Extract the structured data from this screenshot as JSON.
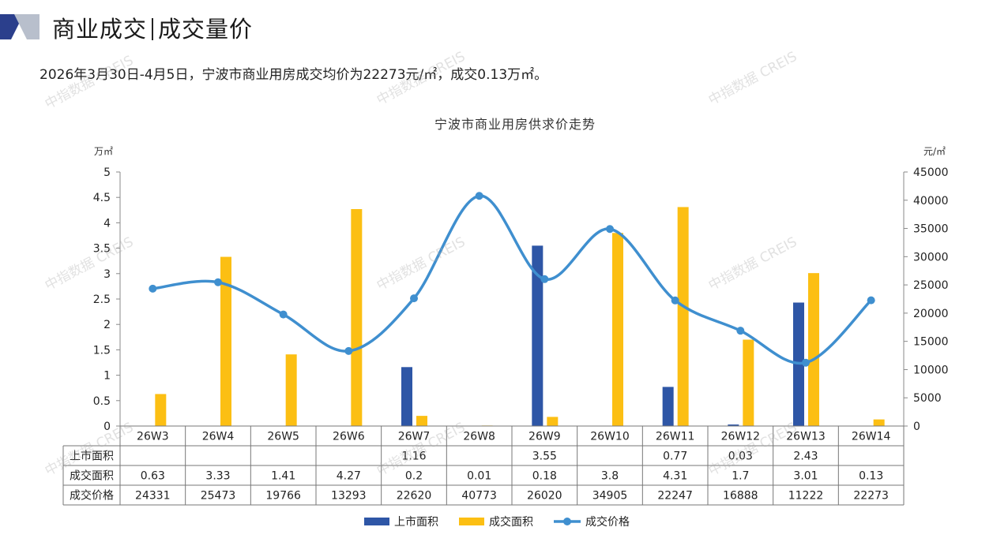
{
  "header": {
    "title_part1": "商业成交",
    "title_part2": "成交量价"
  },
  "summary": "2026年3月30日-4月5日，宁波市商业用房成交均价为22273元/㎡，成交0.13万㎡。",
  "watermark": "中指数据 CREIS",
  "colors": {
    "supply": "#2e56a6",
    "deal_area": "#fcbf13",
    "price": "#3f8fcf",
    "flag_dark": "#2b3f8c",
    "flag_light": "#b8bfcc"
  },
  "chart_data": {
    "type": "bar",
    "title": "宁波市商业用房供求价走势",
    "categories": [
      "26W3",
      "26W4",
      "26W5",
      "26W6",
      "26W7",
      "26W8",
      "26W9",
      "26W10",
      "26W11",
      "26W12",
      "26W13",
      "26W14"
    ],
    "y_left_label": "万㎡",
    "y_right_label": "元/㎡",
    "y_left_ticks": [
      "5",
      "4.5",
      "4",
      "3.5",
      "3",
      "2.5",
      "2",
      "1.5",
      "1",
      "0.5",
      "0"
    ],
    "y_right_ticks": [
      "45000",
      "40000",
      "35000",
      "30000",
      "25000",
      "20000",
      "15000",
      "10000",
      "5000",
      "0"
    ],
    "ylim_left": [
      0,
      5
    ],
    "ylim_right": [
      0,
      45000
    ],
    "series": [
      {
        "name": "上市面积",
        "type": "bar",
        "axis": "left",
        "values": [
          null,
          null,
          null,
          null,
          1.16,
          null,
          3.55,
          null,
          0.77,
          0.03,
          2.43,
          null
        ],
        "labels": [
          "",
          "",
          "",
          "",
          "1.16",
          "",
          "3.55",
          "",
          "0.77",
          "0.03",
          "2.43",
          ""
        ]
      },
      {
        "name": "成交面积",
        "type": "bar",
        "axis": "left",
        "values": [
          0.63,
          3.33,
          1.41,
          4.27,
          0.2,
          0.01,
          0.18,
          3.8,
          4.31,
          1.7,
          3.01,
          0.13
        ],
        "labels": [
          "0.63",
          "3.33",
          "1.41",
          "4.27",
          "0.2",
          "0.01",
          "0.18",
          "3.8",
          "4.31",
          "1.7",
          "3.01",
          "0.13"
        ]
      },
      {
        "name": "成交价格",
        "type": "line",
        "axis": "right",
        "values": [
          24331,
          25473,
          19766,
          13293,
          22620,
          40773,
          26020,
          34905,
          22247,
          16888,
          11222,
          22273
        ],
        "labels": [
          "24331",
          "25473",
          "19766",
          "13293",
          "22620",
          "40773",
          "26020",
          "34905",
          "22247",
          "16888",
          "11222",
          "22273"
        ]
      }
    ],
    "legend_position": "bottom"
  }
}
